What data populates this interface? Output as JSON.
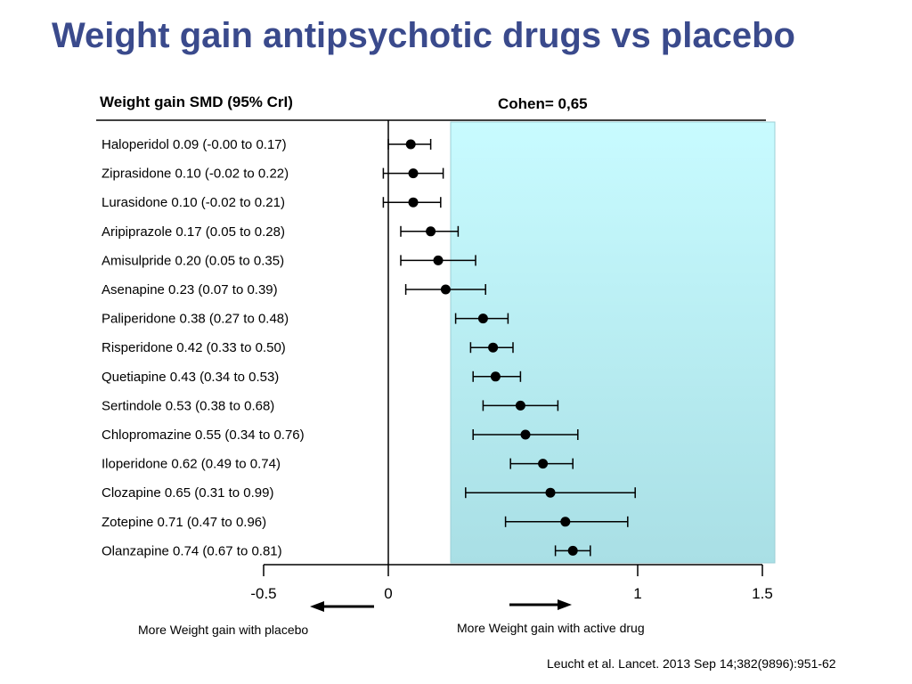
{
  "title": "Weight gain antipsychotic drugs vs placebo",
  "citation": "Leucht et al. Lancet. 2013 Sep 14;382(9896):951-62",
  "chart_data": {
    "type": "forest",
    "header_left": "Weight gain SMD (95% CrI)",
    "header_right": "Cohen= 0,65",
    "xlim": [
      -0.5,
      1.5
    ],
    "xticks": [
      {
        "value": -0.5,
        "label": "-0.5"
      },
      {
        "value": 0,
        "label": "0"
      },
      {
        "value": 1,
        "label": "1"
      },
      {
        "value": 1.5,
        "label": "1.5"
      }
    ],
    "highlight_band": {
      "from": 0.25,
      "to": 1.55,
      "color": "#bff0f5"
    },
    "direction_left": "More Weight gain with placebo",
    "direction_right": "More Weight gain with active drug",
    "marker_color": "#000000",
    "rows": [
      {
        "label": "Haloperidol 0.09 (-0.00 to 0.17)",
        "estimate": 0.09,
        "lower": -0.0,
        "upper": 0.17
      },
      {
        "label": "Ziprasidone 0.10 (-0.02 to 0.22)",
        "estimate": 0.1,
        "lower": -0.02,
        "upper": 0.22
      },
      {
        "label": "Lurasidone 0.10 (-0.02 to 0.21)",
        "estimate": 0.1,
        "lower": -0.02,
        "upper": 0.21
      },
      {
        "label": "Aripiprazole 0.17 (0.05 to 0.28)",
        "estimate": 0.17,
        "lower": 0.05,
        "upper": 0.28
      },
      {
        "label": "Amisulpride 0.20 (0.05 to 0.35)",
        "estimate": 0.2,
        "lower": 0.05,
        "upper": 0.35
      },
      {
        "label": "Asenapine 0.23 (0.07 to 0.39)",
        "estimate": 0.23,
        "lower": 0.07,
        "upper": 0.39
      },
      {
        "label": "Paliperidone 0.38 (0.27 to 0.48)",
        "estimate": 0.38,
        "lower": 0.27,
        "upper": 0.48
      },
      {
        "label": "Risperidone 0.42 (0.33 to 0.50)",
        "estimate": 0.42,
        "lower": 0.33,
        "upper": 0.5
      },
      {
        "label": "Quetiapine 0.43 (0.34 to 0.53)",
        "estimate": 0.43,
        "lower": 0.34,
        "upper": 0.53
      },
      {
        "label": "Sertindole 0.53 (0.38 to 0.68)",
        "estimate": 0.53,
        "lower": 0.38,
        "upper": 0.68
      },
      {
        "label": "Chlopromazine 0.55 (0.34 to 0.76)",
        "estimate": 0.55,
        "lower": 0.34,
        "upper": 0.76
      },
      {
        "label": "Iloperidone 0.62 (0.49 to 0.74)",
        "estimate": 0.62,
        "lower": 0.49,
        "upper": 0.74
      },
      {
        "label": "Clozapine 0.65 (0.31 to 0.99)",
        "estimate": 0.65,
        "lower": 0.31,
        "upper": 0.99
      },
      {
        "label": "Zotepine 0.71 (0.47 to 0.96)",
        "estimate": 0.71,
        "lower": 0.47,
        "upper": 0.96
      },
      {
        "label": "Olanzapine 0.74 (0.67 to 0.81)",
        "estimate": 0.74,
        "lower": 0.67,
        "upper": 0.81
      }
    ]
  }
}
